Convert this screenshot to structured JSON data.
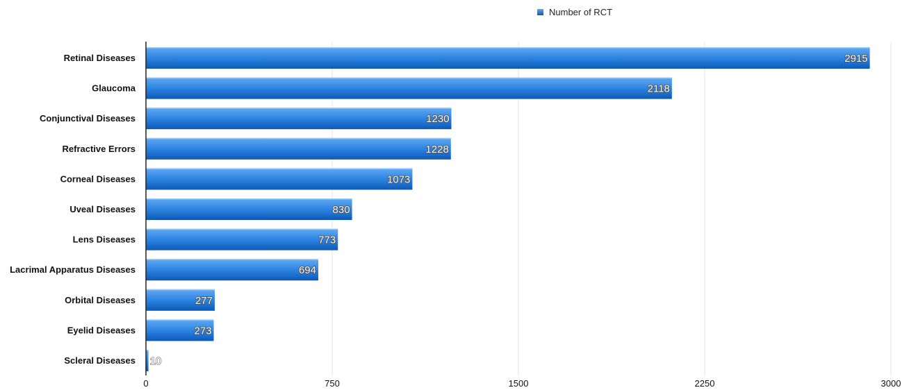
{
  "chart_data": {
    "type": "bar",
    "orientation": "horizontal",
    "categories": [
      "Retinal Diseases",
      "Glaucoma",
      "Conjunctival Diseases",
      "Refractive Errors",
      "Corneal Diseases",
      "Uveal Diseases",
      "Lens Diseases",
      "Lacrimal Apparatus Diseases",
      "Orbital Diseases",
      "Eyelid Diseases",
      "Scleral Diseases"
    ],
    "series": [
      {
        "name": "Number of RCT",
        "values": [
          2915,
          2118,
          1230,
          1228,
          1073,
          830,
          773,
          694,
          277,
          273,
          10
        ]
      }
    ],
    "xlim": [
      0,
      3000
    ],
    "x_ticks": [
      "0",
      "750",
      "1500",
      "2250",
      "3000"
    ],
    "grid": "vertical",
    "legend_position": "top-right",
    "data_labels": true,
    "colors": {
      "bar_top": "#62aaf2",
      "bar_mid": "#2d84e2",
      "bar_bottom": "#0d59b6",
      "grid": "#e3e3e3",
      "axis": "#222222"
    }
  }
}
